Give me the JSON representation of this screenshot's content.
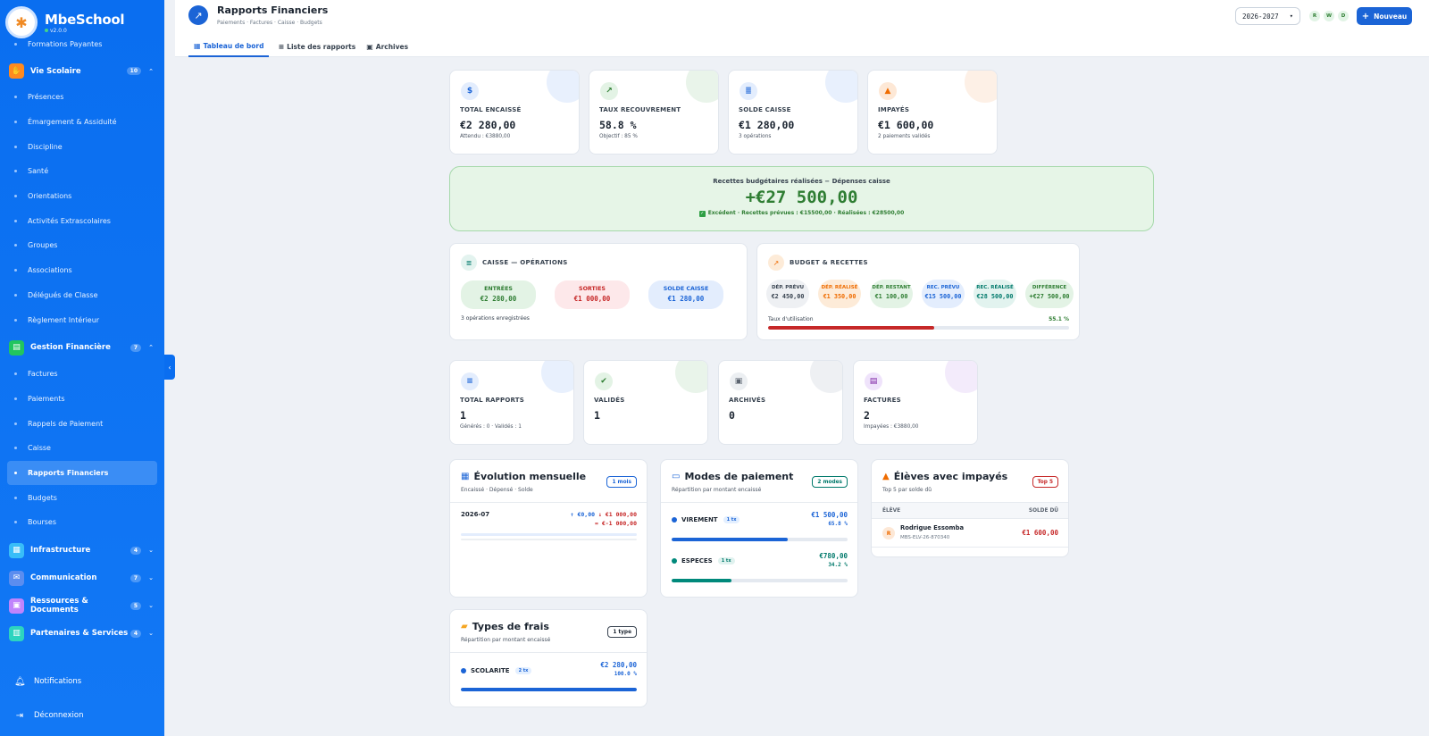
{
  "app": {
    "name": "MbeSchool",
    "version": "v2.0.0"
  },
  "sidebar": {
    "top_partial_item": "Formations Payantes",
    "vie_scolaire": {
      "label": "Vie Scolaire",
      "count": "10",
      "items": [
        "Présences",
        "Émargement & Assiduité",
        "Discipline",
        "Santé",
        "Orientations",
        "Activités Extrascolaires",
        "Groupes",
        "Associations",
        "Délégués de Classe",
        "Règlement Intérieur"
      ]
    },
    "gestion_financiere": {
      "label": "Gestion Financière",
      "count": "7",
      "items": [
        "Factures",
        "Paiements",
        "Rappels de Paiement",
        "Caisse",
        "Rapports Financiers",
        "Budgets",
        "Bourses"
      ]
    },
    "other_groups": [
      {
        "label": "Infrastructure",
        "count": "4"
      },
      {
        "label": "Communication",
        "count": "7"
      },
      {
        "label": "Ressources & Documents",
        "count": "5"
      },
      {
        "label": "Partenaires & Services",
        "count": "4"
      }
    ],
    "notifications": "Notifications",
    "logout": "Déconnexion"
  },
  "header": {
    "title": "Rapports Financiers",
    "subtitle": "Paiements · Factures · Caisse · Budgets",
    "tabs": [
      "Tableau de bord",
      "Liste des rapports",
      "Archives"
    ],
    "year": "2026-2027",
    "perms": [
      "R",
      "W",
      "D"
    ],
    "new_label": "Nouveau"
  },
  "kpis": [
    {
      "label": "TOTAL ENCAISSÉ",
      "value": "€2 280,00",
      "sub": "Attendu : €3880,00",
      "icon": "dollar-icon",
      "color": "#1b64d6"
    },
    {
      "label": "TAUX RECOUVREMENT",
      "value": "58.8 %",
      "sub": "Objectif : 85 %",
      "icon": "trend-up-icon",
      "color": "#2e7d32"
    },
    {
      "label": "SOLDE CAISSE",
      "value": "€1 280,00",
      "sub": "3 opérations",
      "icon": "cash-register-icon",
      "color": "#1b64d6"
    },
    {
      "label": "IMPAYÉS",
      "value": "€1 600,00",
      "sub": "2 paiements validés",
      "icon": "warning-icon",
      "color": "#ef6c00"
    }
  ],
  "budget_banner": {
    "title": "Recettes budgétaires réalisées − Dépenses caisse",
    "value": "+€27 500,00",
    "sub": "Excédent · Recettes prévues : €15500,00 · Réalisées : €28500,00"
  },
  "caisse": {
    "title": "CAISSE — OPÉRATIONS",
    "entries": {
      "label": "ENTRÉES",
      "value": "€2 280,00"
    },
    "exits": {
      "label": "SORTIES",
      "value": "€1 000,00"
    },
    "balance": {
      "label": "SOLDE CAISSE",
      "value": "€1 280,00"
    },
    "footer": "3 opérations enregistrées"
  },
  "budget": {
    "title": "BUDGET & RECETTES",
    "items": [
      {
        "label": "DÉP. PRÉVU",
        "value": "€2 450,00"
      },
      {
        "label": "DÉP. RÉALISÉ",
        "value": "€1 350,00"
      },
      {
        "label": "DÉP. RESTANT",
        "value": "€1 100,00"
      },
      {
        "label": "REC. PRÉVU",
        "value": "€15 500,00"
      },
      {
        "label": "REC. RÉALISÉ",
        "value": "€28 500,00"
      },
      {
        "label": "DIFFÉRENCE",
        "value": "+€27 500,00"
      }
    ],
    "usage_label": "Taux d'utilisation",
    "usage_value": "55.1 %",
    "usage_fraction": 0.551
  },
  "stats": [
    {
      "label": "TOTAL RAPPORTS",
      "value": "1",
      "sub": "Générés : 0 · Validés : 1",
      "icon": "list-icon"
    },
    {
      "label": "VALIDÉS",
      "value": "1",
      "sub": "",
      "icon": "check-circle-icon"
    },
    {
      "label": "ARCHIVÉS",
      "value": "0",
      "sub": "",
      "icon": "archive-icon"
    },
    {
      "label": "FACTURES",
      "value": "2",
      "sub": "Impayées : €3880,00",
      "icon": "invoice-icon"
    }
  ],
  "evolution": {
    "title": "Évolution mensuelle",
    "subtitle": "Encaissé · Dépensé · Solde",
    "badge": "1 mois",
    "month": "2026-07",
    "in": "↑ €0,00",
    "out": "↓ €1 000,00",
    "balance": "= €-1 000,00"
  },
  "payment_modes": {
    "title": "Modes de paiement",
    "subtitle": "Répartition par montant encaissé",
    "badge": "2 modes",
    "items": [
      {
        "name": "VIREMENT",
        "count": "1 tx",
        "amount": "€1 500,00",
        "pct": "65.8 %",
        "fraction": 0.658
      },
      {
        "name": "ESPECES",
        "count": "1 tx",
        "amount": "€780,00",
        "pct": "34.2 %",
        "fraction": 0.342
      }
    ]
  },
  "unpaid": {
    "title": "Élèves avec impayés",
    "subtitle": "Top 5 par solde dû",
    "badge": "Top 5",
    "col_student": "ÉLÈVE",
    "col_due": "SOLDE DÛ",
    "rows": [
      {
        "initial": "R",
        "name": "Rodrigue Essomba",
        "id": "MBS-ELV-26-870340",
        "due": "€1 600,00"
      }
    ]
  },
  "fee_types": {
    "title": "Types de frais",
    "subtitle": "Répartition par montant encaissé",
    "badge": "1 type",
    "items": [
      {
        "name": "SCOLARITE",
        "count": "2 tx",
        "amount": "€2 280,00",
        "pct": "100.0 %",
        "fraction": 1.0
      }
    ]
  }
}
